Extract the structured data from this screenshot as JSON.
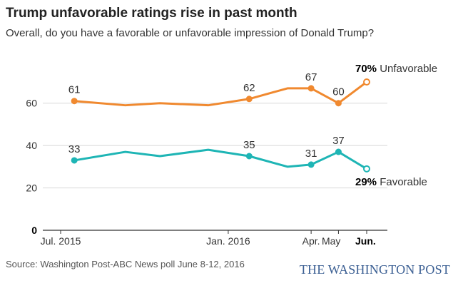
{
  "title": "Trump unfavorable ratings rise in past month",
  "subtitle": "Overall, do you have a favorable or unfavorable impression of Donald Trump?",
  "source": "Source: Washington Post-ABC News poll June 8-12, 2016",
  "brand": "THE WASHINGTON POST",
  "chart_data": {
    "type": "line",
    "ylim": [
      0,
      70
    ],
    "yticks": [
      0,
      20,
      40,
      60
    ],
    "xlim": [
      "2015-07",
      "2016-06"
    ],
    "xticks": [
      {
        "label": "Jul. 2015",
        "x": "2015-07",
        "bold": false
      },
      {
        "label": "Jan. 2016",
        "x": "2016-01",
        "bold": false
      },
      {
        "label": "Apr.",
        "x": "2016-04",
        "bold": false
      },
      {
        "label": "May",
        "x": "2016-05",
        "bold": false
      },
      {
        "label": "Jun.",
        "x": "2016-06",
        "bold": true
      }
    ],
    "grid": true,
    "series": [
      {
        "name": "Unfavorable",
        "end_label": "70%",
        "color": "#f0892f",
        "points": [
          {
            "x": "2015-07-16",
            "y": 61,
            "marker": true,
            "label": "61"
          },
          {
            "x": "2015-09-10",
            "y": 59
          },
          {
            "x": "2015-10-18",
            "y": 60
          },
          {
            "x": "2015-12-10",
            "y": 59
          },
          {
            "x": "2016-01-24",
            "y": 62,
            "marker": true,
            "label": "62"
          },
          {
            "x": "2016-03-06",
            "y": 67
          },
          {
            "x": "2016-04-01",
            "y": 67,
            "marker": true,
            "label": "67"
          },
          {
            "x": "2016-05-01",
            "y": 60,
            "marker": true,
            "label": "60"
          },
          {
            "x": "2016-06-01",
            "y": 70,
            "marker": true,
            "open": true
          }
        ]
      },
      {
        "name": "Favorable",
        "end_label": "29%",
        "color": "#1eb5b5",
        "points": [
          {
            "x": "2015-07-16",
            "y": 33,
            "marker": true,
            "label": "33"
          },
          {
            "x": "2015-09-10",
            "y": 37
          },
          {
            "x": "2015-10-18",
            "y": 35
          },
          {
            "x": "2015-12-10",
            "y": 38
          },
          {
            "x": "2016-01-24",
            "y": 35,
            "marker": true,
            "label": "35"
          },
          {
            "x": "2016-03-06",
            "y": 30
          },
          {
            "x": "2016-04-01",
            "y": 31,
            "marker": true,
            "label": "31"
          },
          {
            "x": "2016-05-01",
            "y": 37,
            "marker": true,
            "label": "37"
          },
          {
            "x": "2016-06-01",
            "y": 29,
            "marker": true,
            "open": true
          }
        ]
      }
    ]
  }
}
